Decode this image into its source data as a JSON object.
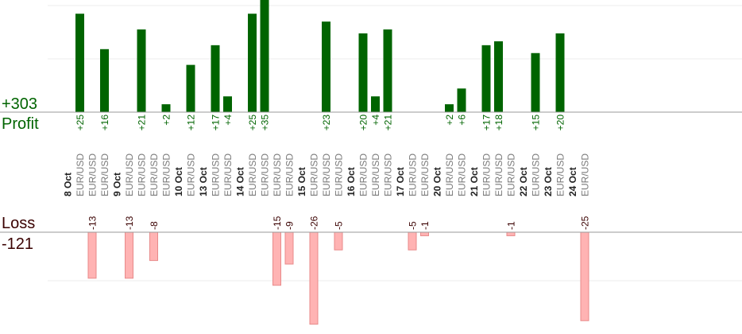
{
  "summary": {
    "profit_total": "+303",
    "profit_label": "Profit",
    "loss_label": "Loss",
    "loss_total": "-121"
  },
  "colors": {
    "profit_bar": "#006400",
    "loss_bar": "#ffb3b3",
    "loss_bar_edge": "#e88a8a",
    "profit_text": "#006400",
    "loss_text": "#3a0000",
    "axis": "#9a9a9a",
    "grid": "#eeeeee",
    "date_text": "#222222",
    "symbol_text": "#7a7a7a"
  },
  "chart_data": {
    "type": "bar",
    "title": "",
    "xlabel": "",
    "ylabel": "",
    "profit_ylim": [
      0,
      30
    ],
    "loss_ylim": [
      -26,
      0
    ],
    "columns": [
      {
        "kind": "date",
        "label": "8 Oct"
      },
      {
        "kind": "trade",
        "label": "EUR/USD",
        "profit": 25,
        "loss": null
      },
      {
        "kind": "trade",
        "label": "EUR/USD",
        "profit": null,
        "loss": -13
      },
      {
        "kind": "trade",
        "label": "EUR/USD",
        "profit": 16,
        "loss": null
      },
      {
        "kind": "date",
        "label": "9 Oct"
      },
      {
        "kind": "trade",
        "label": "EUR/USD",
        "profit": null,
        "loss": -13
      },
      {
        "kind": "trade",
        "label": "EUR/USD",
        "profit": 21,
        "loss": null
      },
      {
        "kind": "trade",
        "label": "EUR/USD",
        "profit": null,
        "loss": -8
      },
      {
        "kind": "trade",
        "label": "EUR/USD",
        "profit": 2,
        "loss": null
      },
      {
        "kind": "date",
        "label": "10 Oct"
      },
      {
        "kind": "trade",
        "label": "EUR/USD",
        "profit": 12,
        "loss": null
      },
      {
        "kind": "date",
        "label": "13 Oct"
      },
      {
        "kind": "trade",
        "label": "EUR/USD",
        "profit": 17,
        "loss": null
      },
      {
        "kind": "trade",
        "label": "EUR/USD",
        "profit": 4,
        "loss": null
      },
      {
        "kind": "date",
        "label": "14 Oct"
      },
      {
        "kind": "trade",
        "label": "EUR/USD",
        "profit": 25,
        "loss": null
      },
      {
        "kind": "trade",
        "label": "EUR/USD",
        "profit": 35,
        "loss": null
      },
      {
        "kind": "trade",
        "label": "EUR/USD",
        "profit": null,
        "loss": -15
      },
      {
        "kind": "trade",
        "label": "EUR/USD",
        "profit": null,
        "loss": -9
      },
      {
        "kind": "date",
        "label": "15 Oct"
      },
      {
        "kind": "trade",
        "label": "EUR/USD",
        "profit": null,
        "loss": -26
      },
      {
        "kind": "trade",
        "label": "EUR/USD",
        "profit": 23,
        "loss": null
      },
      {
        "kind": "trade",
        "label": "EUR/USD",
        "profit": null,
        "loss": -5
      },
      {
        "kind": "date",
        "label": "16 Oct"
      },
      {
        "kind": "trade",
        "label": "EUR/USD",
        "profit": 20,
        "loss": null
      },
      {
        "kind": "trade",
        "label": "EUR/USD",
        "profit": 4,
        "loss": null
      },
      {
        "kind": "trade",
        "label": "EUR/USD",
        "profit": 21,
        "loss": null
      },
      {
        "kind": "date",
        "label": "17 Oct"
      },
      {
        "kind": "trade",
        "label": "EUR/USD",
        "profit": null,
        "loss": -5
      },
      {
        "kind": "trade",
        "label": "EUR/USD",
        "profit": null,
        "loss": -1
      },
      {
        "kind": "date",
        "label": "20 Oct"
      },
      {
        "kind": "trade",
        "label": "EUR/USD",
        "profit": 2,
        "loss": null
      },
      {
        "kind": "trade",
        "label": "EUR/USD",
        "profit": 6,
        "loss": null
      },
      {
        "kind": "date",
        "label": "21 Oct"
      },
      {
        "kind": "trade",
        "label": "EUR/USD",
        "profit": 17,
        "loss": null
      },
      {
        "kind": "trade",
        "label": "EUR/USD",
        "profit": 18,
        "loss": null
      },
      {
        "kind": "trade",
        "label": "EUR/USD",
        "profit": null,
        "loss": -1
      },
      {
        "kind": "date",
        "label": "22 Oct"
      },
      {
        "kind": "trade",
        "label": "EUR/USD",
        "profit": 15,
        "loss": null
      },
      {
        "kind": "date",
        "label": "23 Oct"
      },
      {
        "kind": "trade",
        "label": "EUR/USD",
        "profit": 20,
        "loss": null
      },
      {
        "kind": "date",
        "label": "24 Oct"
      },
      {
        "kind": "trade",
        "label": "EUR/USD",
        "profit": null,
        "loss": -25
      }
    ]
  }
}
